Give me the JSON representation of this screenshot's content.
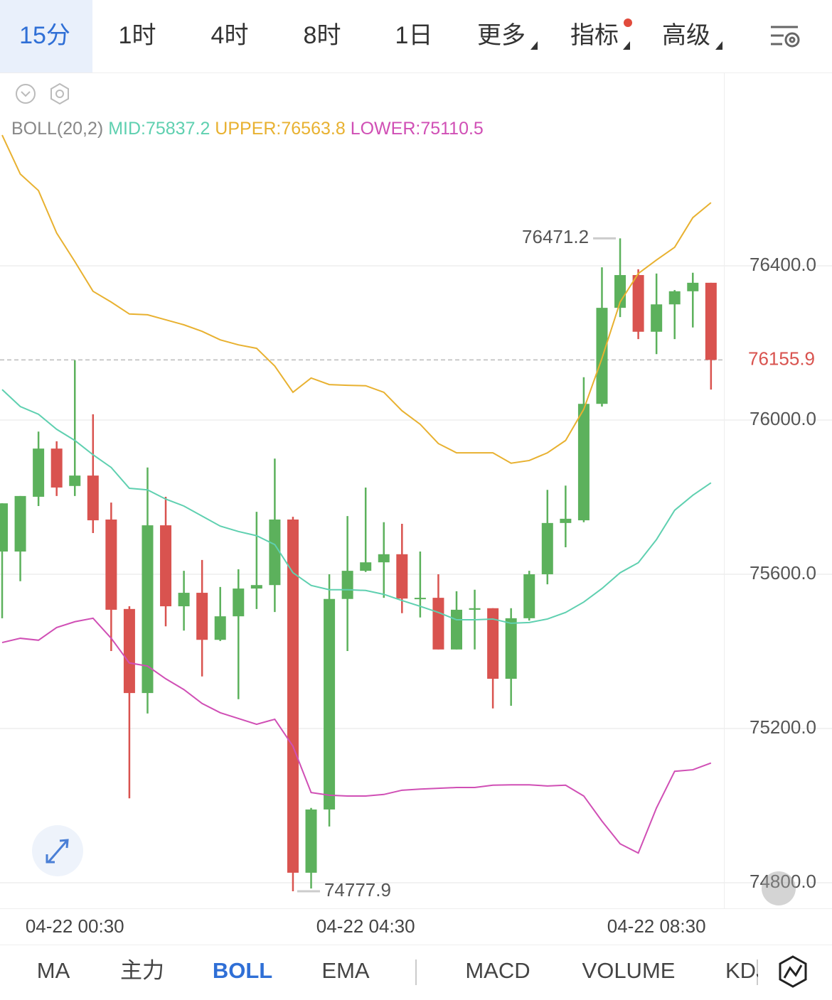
{
  "top_tabs": [
    "15分",
    "1时",
    "4时",
    "8时",
    "1日",
    "更多",
    "指标",
    "高级"
  ],
  "bottom_tabs": [
    "MA",
    "主力",
    "BOLL",
    "EMA",
    "MACD",
    "VOLUME",
    "KDJ"
  ],
  "chart_data": {
    "type": "candlestick",
    "indicator": "BOLL(20,2)",
    "categories": [
      null,
      null,
      null,
      null,
      "04-22 00:30",
      null,
      null,
      null,
      null,
      null,
      null,
      null,
      null,
      null,
      null,
      null,
      null,
      null,
      null,
      null,
      "04-22 04:30",
      null,
      null,
      null,
      null,
      null,
      null,
      null,
      null,
      null,
      null,
      null,
      null,
      null,
      null,
      null,
      "04-22 08:30",
      null,
      null,
      null
    ],
    "open": [
      75659,
      75659,
      75801,
      75926,
      75829,
      75856,
      75742,
      75510,
      75292,
      75727,
      75517,
      75552,
      75430,
      75491,
      75563,
      75572,
      75742,
      74826,
      74990,
      75536,
      75609,
      75631,
      75652,
      75536,
      75539,
      75405,
      75508,
      75512,
      75329,
      75486,
      75600,
      75733,
      75740,
      76042,
      76291,
      76376,
      76229,
      76300,
      76334,
      76356
    ],
    "high": [
      75784,
      75803,
      75970,
      75945,
      76155,
      76015,
      75786,
      75517,
      75877,
      75801,
      75609,
      75637,
      75567,
      75613,
      75762,
      75900,
      75749,
      74994,
      75600,
      75751,
      75825,
      75735,
      75731,
      75659,
      75600,
      75556,
      75560,
      75512,
      75512,
      75609,
      75819,
      75830,
      76111,
      76396,
      76471.2,
      76391,
      76380,
      76337,
      76382,
      76356
    ],
    "low": [
      75486,
      75582,
      75777,
      75803,
      75803,
      75707,
      75401,
      75019,
      75239,
      75465,
      75454,
      75335,
      75427,
      75276,
      75510,
      75502,
      74777.9,
      74785,
      74946,
      75401,
      75606,
      75539,
      75499,
      75488,
      75405,
      75405,
      75405,
      75252,
      75259,
      75480,
      75574,
      75670,
      75735,
      76035,
      76267,
      76210,
      76171,
      76210,
      76240,
      76079
    ],
    "close": [
      75784,
      75803,
      75926,
      75825,
      75856,
      75740,
      75508,
      75292,
      75727,
      75517,
      75552,
      75430,
      75491,
      75563,
      75572,
      75742,
      74826,
      74990,
      75536,
      75609,
      75631,
      75652,
      75537,
      75539,
      75405,
      75508,
      75512,
      75329,
      75486,
      75600,
      75733,
      75744,
      76042,
      76291,
      76376,
      76229,
      76300,
      76334,
      76356,
      76155.9
    ],
    "up_color": "#5cb15c",
    "down_color": "#d9534f",
    "series": [
      {
        "name": "MID:75837.2",
        "color": "#5fd0b0",
        "values": [
          76079,
          76035,
          76015,
          75976,
          75947,
          75910,
          75877,
          75823,
          75819,
          75795,
          75777,
          75751,
          75725,
          75711,
          75700,
          75677,
          75604,
          75571,
          75560,
          75560,
          75558,
          75548,
          75532,
          75517,
          75501,
          75482,
          75482,
          75484,
          75473,
          75475,
          75484,
          75501,
          75528,
          75563,
          75604,
          75630,
          75690,
          75766,
          75805,
          75837.2
        ]
      },
      {
        "name": "UPPER:76563.8",
        "color": "#e8b130",
        "values": [
          76739,
          76638,
          76595,
          76485,
          76411,
          76334,
          76306,
          76275,
          76273,
          76260,
          76247,
          76230,
          76208,
          76195,
          76186,
          76140,
          76072,
          76109,
          76092,
          76090,
          76089,
          76072,
          76024,
          75989,
          75939,
          75915,
          75915,
          75915,
          75888,
          75895,
          75915,
          75947,
          76028,
          76160,
          76306,
          76380,
          76415,
          76448,
          76525,
          76563.8
        ]
      },
      {
        "name": "LOWER:75110.5",
        "color": "#d04fb5",
        "values": [
          75423,
          75434,
          75429,
          75462,
          75477,
          75486,
          75434,
          75370,
          75362,
          75329,
          75301,
          75265,
          75241,
          75226,
          75211,
          75224,
          75154,
          75034,
          75027,
          75025,
          75025,
          75029,
          75040,
          75043,
          75045,
          75047,
          75047,
          75053,
          75054,
          75054,
          75051,
          75053,
          75025,
          74960,
          74901,
          74877,
          74994,
          75089,
          75093,
          75110.5
        ]
      }
    ],
    "annotations": [
      "76471.2",
      "74777.9"
    ],
    "last_price": {
      "value": 76155.9,
      "label": "76155.9"
    },
    "ylim": [
      74733.7,
      76899.5
    ],
    "yticks": [
      {
        "value": 74800,
        "label": "74800.0"
      },
      {
        "value": 75200,
        "label": "75200.0"
      },
      {
        "value": 75600,
        "label": "75600.0"
      },
      {
        "value": 76000,
        "label": "76000.0"
      },
      {
        "value": 76400,
        "label": "76400.0"
      }
    ],
    "grid": true
  }
}
